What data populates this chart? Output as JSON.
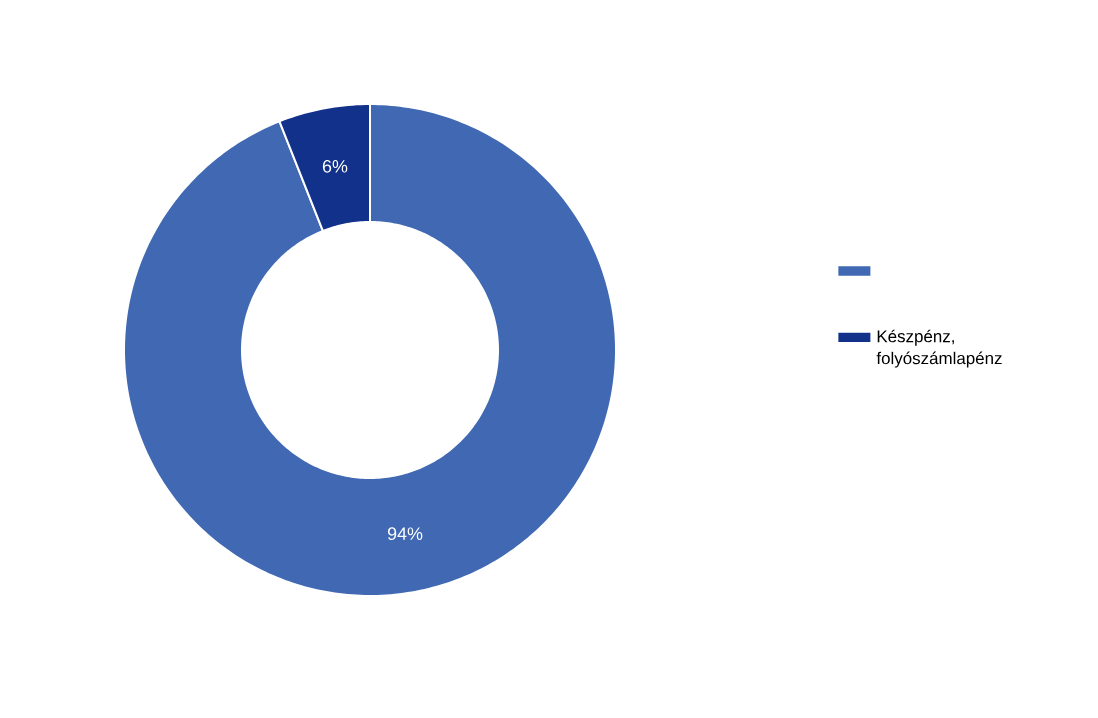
{
  "chart_data": {
    "type": "donut",
    "categories": [
      null,
      "Készpénz, folyószámlapénz"
    ],
    "values": [
      94,
      6
    ],
    "colors": [
      "#4169b3",
      "#12318b"
    ],
    "value_labels": [
      "94%",
      "6%"
    ],
    "legend": "right"
  }
}
